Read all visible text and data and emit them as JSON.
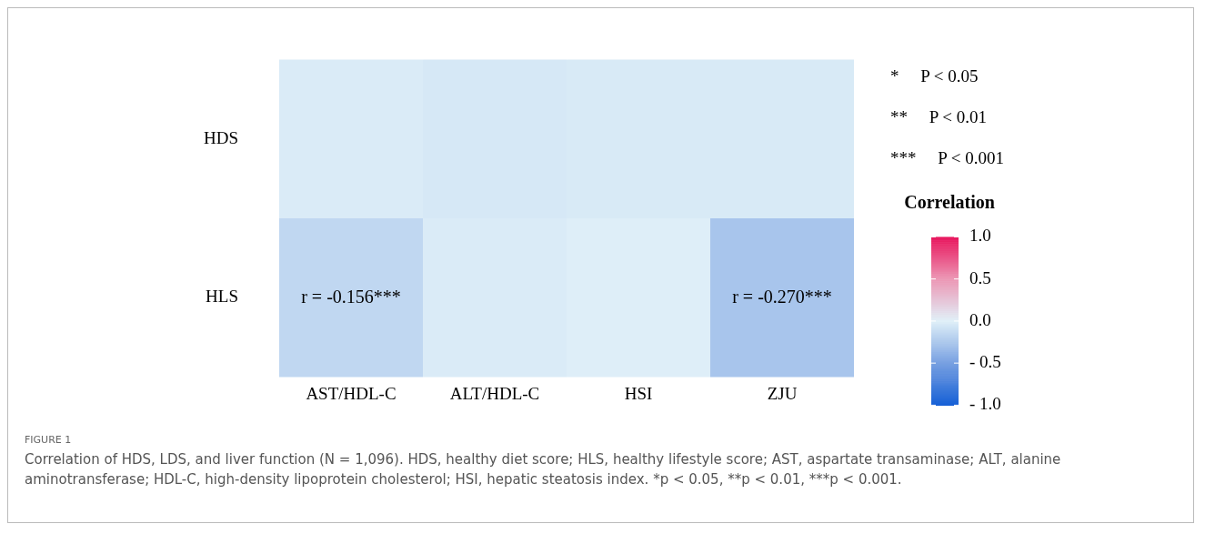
{
  "chart_data": {
    "type": "heatmap",
    "categories": [
      "AST/HDL-C",
      "ALT/HDL-C",
      "HSI",
      "ZJU"
    ],
    "y_categories": [
      "HDS",
      "HLS"
    ],
    "cells": [
      [
        -0.03,
        -0.05,
        -0.04,
        -0.04
      ],
      [
        -0.156,
        -0.03,
        -0.01,
        -0.27
      ]
    ],
    "cell_labels": [
      [
        null,
        null,
        null,
        null
      ],
      [
        "r = -0.156***",
        null,
        null,
        "r = -0.270***"
      ]
    ],
    "clabel": "Correlation",
    "clim": [
      -1,
      1
    ],
    "cticks": [
      {
        "value": 1,
        "label": "1.0"
      },
      {
        "value": 0.5,
        "label": "0.5"
      },
      {
        "value": 0,
        "label": "0.0"
      },
      {
        "value": -0.5,
        "label": "- 0.5"
      },
      {
        "value": -1,
        "label": "- 1.0"
      }
    ],
    "annotations": [
      "*     P < 0.05",
      "**     P < 0.01",
      "***     P < 0.001",
      "FIGURE 1",
      "Correlation of HDS, LDS, and liver function (N = 1,096). HDS, healthy diet score; HLS, healthy lifestyle score; AST, aspartate transaminase; ALT, alanine aminotransferase; HDL-C, high-density lipoprotein cholesterol; HSI, hepatic steatosis index. *p < 0.05, **p < 0.01, ***p < 0.001."
    ]
  }
}
